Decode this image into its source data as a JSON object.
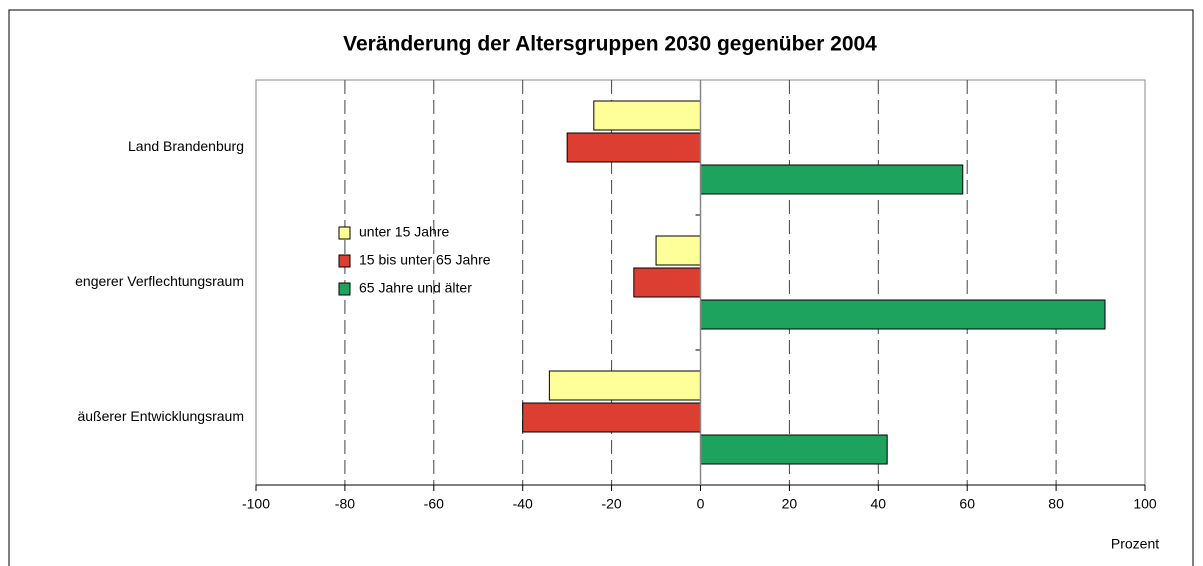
{
  "chart_data": {
    "type": "hbar",
    "title": "Veränderung der Altersgruppen 2030 gegenüber 2004",
    "xlabel": "Prozent",
    "categories": [
      "Land Brandenburg",
      "engerer Verflechtungsraum",
      "äußerer Entwicklungsraum"
    ],
    "series": [
      {
        "name": "unter 15 Jahre",
        "color": "#ffff99",
        "values": [
          -24,
          -10,
          -34
        ]
      },
      {
        "name": "15 bis unter 65 Jahre",
        "color": "#dd3e32",
        "values": [
          -30,
          -15,
          -40
        ]
      },
      {
        "name": "65 Jahre und älter",
        "color": "#1ea35e",
        "values": [
          59,
          91,
          42
        ]
      }
    ],
    "xlim": [
      -100,
      100
    ],
    "xticks": [
      -100,
      -80,
      -60,
      -40,
      -20,
      0,
      20,
      40,
      60,
      80,
      100
    ],
    "grid": true
  }
}
